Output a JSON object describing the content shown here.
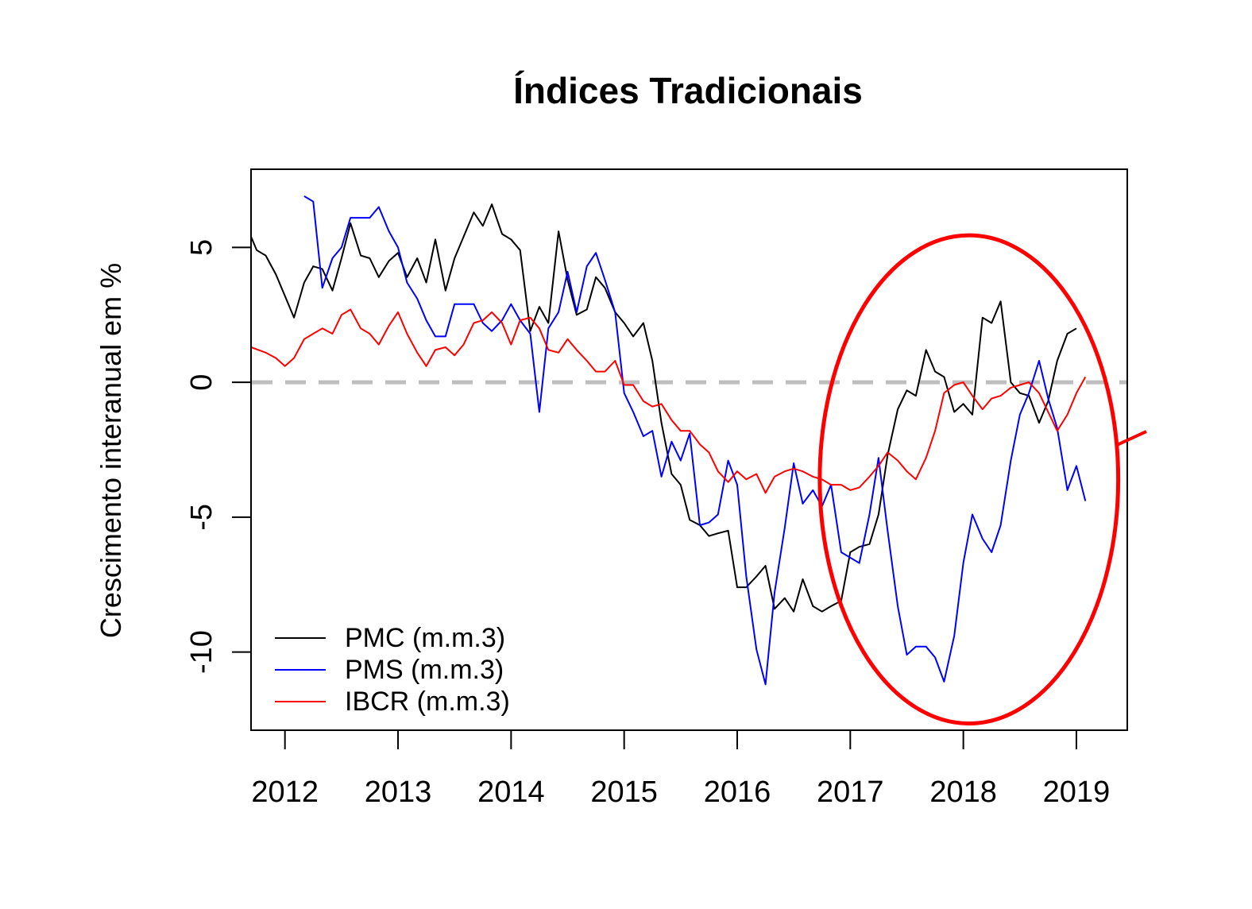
{
  "chart_data": {
    "type": "line",
    "title": "Índices Tradicionais",
    "xlabel": "",
    "ylabel": "Crescimento interanual em %",
    "xlim": [
      2011.7,
      2019.45
    ],
    "ylim": [
      -12.9,
      7.9
    ],
    "x_ticks": [
      2012,
      2013,
      2014,
      2015,
      2016,
      2017,
      2018,
      2019
    ],
    "x_tick_labels": [
      "2012",
      "2013",
      "2014",
      "2015",
      "2016",
      "2017",
      "2018",
      "2019"
    ],
    "y_ticks": [
      -10,
      -5,
      0,
      5
    ],
    "y_tick_labels": [
      "-10",
      "-5",
      "0",
      "5"
    ],
    "reference_line": {
      "y": 0,
      "style": "dashed",
      "color": "#bebebe"
    },
    "legend": {
      "position": "bottom-left",
      "entries": [
        "PMC (m.m.3)",
        "PMS (m.m.3)",
        "IBCR (m.m.3)"
      ]
    },
    "series": [
      {
        "name": "PMC (m.m.3)",
        "color": "#000000",
        "points": [
          [
            2011.7,
            5.4
          ],
          [
            2011.75,
            4.9
          ],
          [
            2011.83,
            4.7
          ],
          [
            2011.92,
            4.0
          ],
          [
            2012.0,
            3.2
          ],
          [
            2012.08,
            2.4
          ],
          [
            2012.17,
            3.7
          ],
          [
            2012.25,
            4.3
          ],
          [
            2012.33,
            4.2
          ],
          [
            2012.42,
            3.4
          ],
          [
            2012.5,
            4.6
          ],
          [
            2012.58,
            5.9
          ],
          [
            2012.67,
            4.7
          ],
          [
            2012.75,
            4.6
          ],
          [
            2012.83,
            3.9
          ],
          [
            2012.92,
            4.5
          ],
          [
            2013.0,
            4.8
          ],
          [
            2013.08,
            3.9
          ],
          [
            2013.17,
            4.6
          ],
          [
            2013.25,
            3.7
          ],
          [
            2013.33,
            5.3
          ],
          [
            2013.42,
            3.4
          ],
          [
            2013.5,
            4.6
          ],
          [
            2013.58,
            5.4
          ],
          [
            2013.67,
            6.3
          ],
          [
            2013.75,
            5.8
          ],
          [
            2013.83,
            6.6
          ],
          [
            2013.92,
            5.5
          ],
          [
            2014.0,
            5.3
          ],
          [
            2014.08,
            4.9
          ],
          [
            2014.17,
            1.9
          ],
          [
            2014.25,
            2.8
          ],
          [
            2014.33,
            2.2
          ],
          [
            2014.42,
            5.6
          ],
          [
            2014.5,
            3.8
          ],
          [
            2014.58,
            2.5
          ],
          [
            2014.67,
            2.7
          ],
          [
            2014.75,
            3.9
          ],
          [
            2014.83,
            3.5
          ],
          [
            2014.92,
            2.6
          ],
          [
            2015.0,
            2.2
          ],
          [
            2015.08,
            1.7
          ],
          [
            2015.17,
            2.2
          ],
          [
            2015.25,
            0.8
          ],
          [
            2015.33,
            -1.5
          ],
          [
            2015.42,
            -3.4
          ],
          [
            2015.5,
            -3.8
          ],
          [
            2015.58,
            -5.1
          ],
          [
            2015.67,
            -5.3
          ],
          [
            2015.75,
            -5.7
          ],
          [
            2015.83,
            -5.6
          ],
          [
            2015.92,
            -5.5
          ],
          [
            2016.0,
            -7.6
          ],
          [
            2016.08,
            -7.6
          ],
          [
            2016.17,
            -7.2
          ],
          [
            2016.25,
            -6.8
          ],
          [
            2016.33,
            -8.4
          ],
          [
            2016.42,
            -8.0
          ],
          [
            2016.5,
            -8.5
          ],
          [
            2016.58,
            -7.3
          ],
          [
            2016.67,
            -8.3
          ],
          [
            2016.75,
            -8.5
          ],
          [
            2016.83,
            -8.3
          ],
          [
            2016.92,
            -8.1
          ],
          [
            2017.0,
            -6.3
          ],
          [
            2017.08,
            -6.1
          ],
          [
            2017.17,
            -6.0
          ],
          [
            2017.25,
            -4.9
          ],
          [
            2017.33,
            -2.7
          ],
          [
            2017.42,
            -1.0
          ],
          [
            2017.5,
            -0.3
          ],
          [
            2017.58,
            -0.5
          ],
          [
            2017.67,
            1.2
          ],
          [
            2017.75,
            0.4
          ],
          [
            2017.83,
            0.2
          ],
          [
            2017.92,
            -1.1
          ],
          [
            2018.0,
            -0.8
          ],
          [
            2018.08,
            -1.2
          ],
          [
            2018.17,
            2.4
          ],
          [
            2018.25,
            2.2
          ],
          [
            2018.33,
            3.0
          ],
          [
            2018.42,
            0.0
          ],
          [
            2018.5,
            -0.4
          ],
          [
            2018.58,
            -0.5
          ],
          [
            2018.67,
            -1.5
          ],
          [
            2018.75,
            -0.7
          ],
          [
            2018.83,
            0.8
          ],
          [
            2018.92,
            1.8
          ],
          [
            2019.0,
            2.0
          ]
        ]
      },
      {
        "name": "PMS (m.m.3)",
        "color": "#0000ff",
        "points": [
          [
            2012.17,
            6.9
          ],
          [
            2012.25,
            6.7
          ],
          [
            2012.33,
            3.5
          ],
          [
            2012.42,
            4.6
          ],
          [
            2012.5,
            5.0
          ],
          [
            2012.58,
            6.1
          ],
          [
            2012.67,
            6.1
          ],
          [
            2012.75,
            6.1
          ],
          [
            2012.83,
            6.5
          ],
          [
            2012.92,
            5.6
          ],
          [
            2013.0,
            5.0
          ],
          [
            2013.08,
            3.7
          ],
          [
            2013.17,
            3.1
          ],
          [
            2013.25,
            2.3
          ],
          [
            2013.33,
            1.7
          ],
          [
            2013.42,
            1.7
          ],
          [
            2013.5,
            2.9
          ],
          [
            2013.58,
            2.9
          ],
          [
            2013.67,
            2.9
          ],
          [
            2013.75,
            2.2
          ],
          [
            2013.83,
            1.9
          ],
          [
            2013.92,
            2.3
          ],
          [
            2014.0,
            2.9
          ],
          [
            2014.08,
            2.3
          ],
          [
            2014.17,
            1.8
          ],
          [
            2014.25,
            -1.1
          ],
          [
            2014.33,
            2.0
          ],
          [
            2014.42,
            2.6
          ],
          [
            2014.5,
            4.1
          ],
          [
            2014.58,
            2.6
          ],
          [
            2014.67,
            4.3
          ],
          [
            2014.75,
            4.8
          ],
          [
            2014.83,
            3.8
          ],
          [
            2014.92,
            2.6
          ],
          [
            2015.0,
            -0.4
          ],
          [
            2015.08,
            -1.1
          ],
          [
            2015.17,
            -2.0
          ],
          [
            2015.25,
            -1.8
          ],
          [
            2015.33,
            -3.5
          ],
          [
            2015.42,
            -2.2
          ],
          [
            2015.5,
            -2.9
          ],
          [
            2015.58,
            -1.9
          ],
          [
            2015.67,
            -5.3
          ],
          [
            2015.75,
            -5.2
          ],
          [
            2015.83,
            -4.9
          ],
          [
            2015.92,
            -2.9
          ],
          [
            2016.0,
            -3.8
          ],
          [
            2016.08,
            -7.2
          ],
          [
            2016.17,
            -9.9
          ],
          [
            2016.25,
            -11.2
          ],
          [
            2016.33,
            -7.8
          ],
          [
            2016.42,
            -5.4
          ],
          [
            2016.5,
            -3.0
          ],
          [
            2016.58,
            -4.5
          ],
          [
            2016.67,
            -4.0
          ],
          [
            2016.75,
            -4.6
          ],
          [
            2016.83,
            -3.8
          ],
          [
            2016.92,
            -6.3
          ],
          [
            2017.0,
            -6.5
          ],
          [
            2017.08,
            -6.7
          ],
          [
            2017.17,
            -4.9
          ],
          [
            2017.25,
            -2.8
          ],
          [
            2017.33,
            -5.5
          ],
          [
            2017.42,
            -8.3
          ],
          [
            2017.5,
            -10.1
          ],
          [
            2017.58,
            -9.8
          ],
          [
            2017.67,
            -9.8
          ],
          [
            2017.75,
            -10.2
          ],
          [
            2017.83,
            -11.1
          ],
          [
            2017.92,
            -9.4
          ],
          [
            2018.0,
            -6.7
          ],
          [
            2018.08,
            -4.9
          ],
          [
            2018.17,
            -5.8
          ],
          [
            2018.25,
            -6.3
          ],
          [
            2018.33,
            -5.3
          ],
          [
            2018.42,
            -2.9
          ],
          [
            2018.5,
            -1.2
          ],
          [
            2018.58,
            -0.4
          ],
          [
            2018.67,
            0.8
          ],
          [
            2018.75,
            -0.6
          ],
          [
            2018.83,
            -1.7
          ],
          [
            2018.92,
            -4.0
          ],
          [
            2019.0,
            -3.1
          ],
          [
            2019.08,
            -4.4
          ]
        ]
      },
      {
        "name": "IBCR (m.m.3)",
        "color": "#ff0000",
        "points": [
          [
            2011.7,
            1.3
          ],
          [
            2011.83,
            1.1
          ],
          [
            2011.92,
            0.9
          ],
          [
            2012.0,
            0.6
          ],
          [
            2012.08,
            0.9
          ],
          [
            2012.17,
            1.6
          ],
          [
            2012.25,
            1.8
          ],
          [
            2012.33,
            2.0
          ],
          [
            2012.42,
            1.8
          ],
          [
            2012.5,
            2.5
          ],
          [
            2012.58,
            2.7
          ],
          [
            2012.67,
            2.0
          ],
          [
            2012.75,
            1.8
          ],
          [
            2012.83,
            1.4
          ],
          [
            2012.92,
            2.1
          ],
          [
            2013.0,
            2.6
          ],
          [
            2013.08,
            1.8
          ],
          [
            2013.17,
            1.1
          ],
          [
            2013.25,
            0.6
          ],
          [
            2013.33,
            1.2
          ],
          [
            2013.42,
            1.3
          ],
          [
            2013.5,
            1.0
          ],
          [
            2013.58,
            1.4
          ],
          [
            2013.67,
            2.2
          ],
          [
            2013.75,
            2.3
          ],
          [
            2013.83,
            2.6
          ],
          [
            2013.92,
            2.2
          ],
          [
            2014.0,
            1.4
          ],
          [
            2014.08,
            2.3
          ],
          [
            2014.17,
            2.4
          ],
          [
            2014.25,
            2.0
          ],
          [
            2014.33,
            1.2
          ],
          [
            2014.42,
            1.1
          ],
          [
            2014.5,
            1.6
          ],
          [
            2014.58,
            1.2
          ],
          [
            2014.67,
            0.8
          ],
          [
            2014.75,
            0.4
          ],
          [
            2014.83,
            0.4
          ],
          [
            2014.92,
            0.8
          ],
          [
            2015.0,
            -0.1
          ],
          [
            2015.08,
            -0.1
          ],
          [
            2015.17,
            -0.7
          ],
          [
            2015.25,
            -0.9
          ],
          [
            2015.33,
            -0.8
          ],
          [
            2015.42,
            -1.4
          ],
          [
            2015.5,
            -1.8
          ],
          [
            2015.58,
            -1.8
          ],
          [
            2015.67,
            -2.3
          ],
          [
            2015.75,
            -2.6
          ],
          [
            2015.83,
            -3.3
          ],
          [
            2015.92,
            -3.7
          ],
          [
            2016.0,
            -3.3
          ],
          [
            2016.08,
            -3.6
          ],
          [
            2016.17,
            -3.4
          ],
          [
            2016.25,
            -4.1
          ],
          [
            2016.33,
            -3.5
          ],
          [
            2016.42,
            -3.3
          ],
          [
            2016.5,
            -3.2
          ],
          [
            2016.58,
            -3.3
          ],
          [
            2016.67,
            -3.5
          ],
          [
            2016.75,
            -3.6
          ],
          [
            2016.83,
            -3.8
          ],
          [
            2016.92,
            -3.8
          ],
          [
            2017.0,
            -4.0
          ],
          [
            2017.08,
            -3.9
          ],
          [
            2017.17,
            -3.5
          ],
          [
            2017.25,
            -3.1
          ],
          [
            2017.33,
            -2.6
          ],
          [
            2017.42,
            -2.9
          ],
          [
            2017.5,
            -3.3
          ],
          [
            2017.58,
            -3.6
          ],
          [
            2017.67,
            -2.8
          ],
          [
            2017.75,
            -1.8
          ],
          [
            2017.83,
            -0.4
          ],
          [
            2017.92,
            -0.1
          ],
          [
            2018.0,
            0.0
          ],
          [
            2018.08,
            -0.5
          ],
          [
            2018.17,
            -1.0
          ],
          [
            2018.25,
            -0.6
          ],
          [
            2018.33,
            -0.5
          ],
          [
            2018.42,
            -0.2
          ],
          [
            2018.5,
            -0.1
          ],
          [
            2018.58,
            0.0
          ],
          [
            2018.67,
            -0.4
          ],
          [
            2018.75,
            -1.1
          ],
          [
            2018.83,
            -1.8
          ],
          [
            2018.92,
            -1.2
          ],
          [
            2019.0,
            -0.4
          ],
          [
            2019.08,
            0.2
          ]
        ]
      }
    ],
    "annotation": {
      "type": "ellipse",
      "color": "#ff0000",
      "center": [
        2018.05,
        -3.6
      ],
      "radius": [
        1.32,
        9.05
      ],
      "pointer_line_to": [
        2019.45,
        -2.0
      ]
    }
  }
}
